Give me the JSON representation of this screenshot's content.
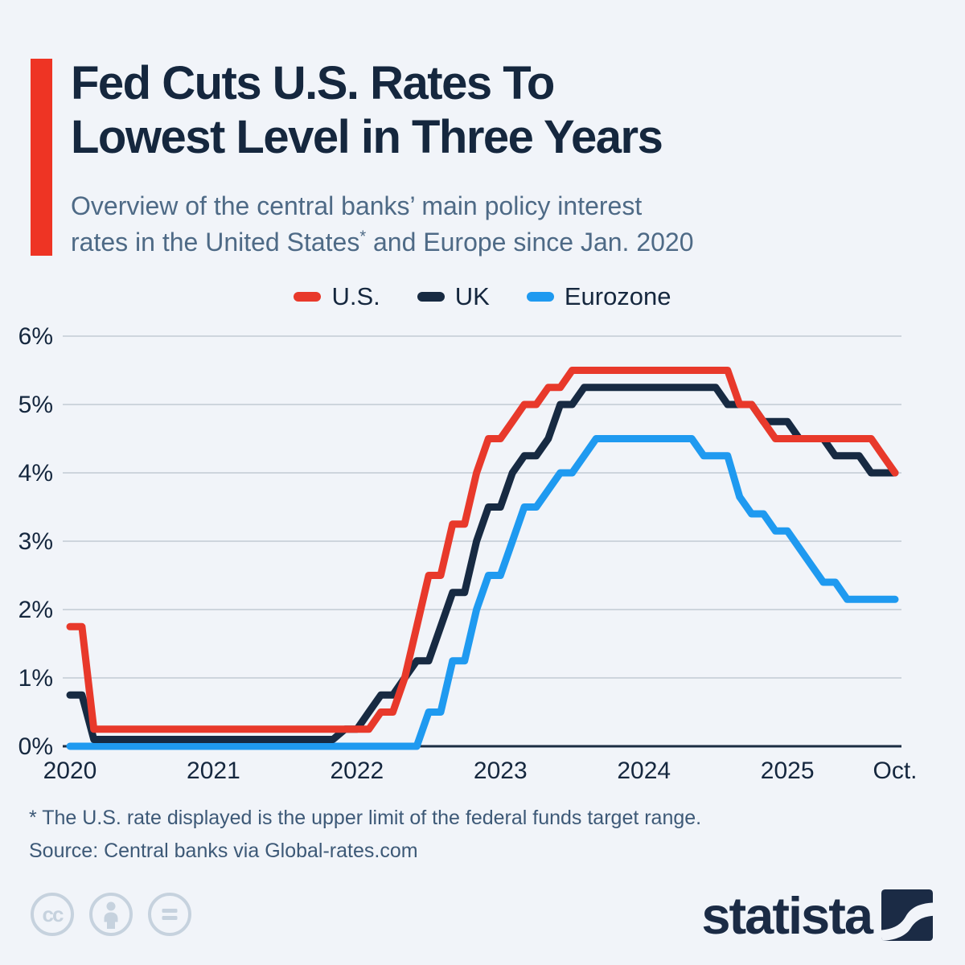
{
  "page": {
    "background": "#f1f4f9",
    "accent_red": "#ee3424",
    "grid_color": "#c9d1d9",
    "axis_color": "#1b2c42",
    "text_dark": "#15273e",
    "text_muted": "#4e6a86"
  },
  "header": {
    "title_line1": "Fed Cuts U.S. Rates To",
    "title_line2": "Lowest Level in Three Years",
    "subtitle_line1": "Overview of the central banks’ main policy interest",
    "subtitle_line2_pre": "rates in the United States",
    "subtitle_asterisk": "*",
    "subtitle_line2_post": " and Europe since Jan. 2020"
  },
  "legend": [
    {
      "label": "U.S.",
      "color": "#e8392b"
    },
    {
      "label": "UK",
      "color": "#172a42"
    },
    {
      "label": "Eurozone",
      "color": "#1f9af0"
    }
  ],
  "chart_data": {
    "type": "line",
    "title": "Central banks' main policy interest rates, Jan 2020 - Oct 2025, monthly",
    "x_unit": "month",
    "x_start": "2020-01",
    "x_end": "2025-10",
    "x_tick_labels": [
      "2020",
      "2021",
      "2022",
      "2023",
      "2024",
      "2025",
      "Oct."
    ],
    "x_tick_month_index": [
      0,
      12,
      24,
      36,
      48,
      60,
      69
    ],
    "y_tick_labels": [
      "0%",
      "1%",
      "2%",
      "3%",
      "4%",
      "5%",
      "6%"
    ],
    "ylim": [
      0,
      6
    ],
    "grid": true,
    "legend_position": "top",
    "series": [
      {
        "name": "U.S.",
        "color": "#e8392b",
        "values": [
          1.75,
          1.75,
          0.25,
          0.25,
          0.25,
          0.25,
          0.25,
          0.25,
          0.25,
          0.25,
          0.25,
          0.25,
          0.25,
          0.25,
          0.25,
          0.25,
          0.25,
          0.25,
          0.25,
          0.25,
          0.25,
          0.25,
          0.25,
          0.25,
          0.25,
          0.25,
          0.5,
          0.5,
          1.0,
          1.75,
          2.5,
          2.5,
          3.25,
          3.25,
          4.0,
          4.5,
          4.5,
          4.75,
          5.0,
          5.0,
          5.25,
          5.25,
          5.5,
          5.5,
          5.5,
          5.5,
          5.5,
          5.5,
          5.5,
          5.5,
          5.5,
          5.5,
          5.5,
          5.5,
          5.5,
          5.5,
          5.0,
          5.0,
          4.75,
          4.5,
          4.5,
          4.5,
          4.5,
          4.5,
          4.5,
          4.5,
          4.5,
          4.5,
          4.25,
          4.0
        ]
      },
      {
        "name": "UK",
        "color": "#172a42",
        "values": [
          0.75,
          0.75,
          0.1,
          0.1,
          0.1,
          0.1,
          0.1,
          0.1,
          0.1,
          0.1,
          0.1,
          0.1,
          0.1,
          0.1,
          0.1,
          0.1,
          0.1,
          0.1,
          0.1,
          0.1,
          0.1,
          0.1,
          0.1,
          0.25,
          0.25,
          0.5,
          0.75,
          0.75,
          1.0,
          1.25,
          1.25,
          1.75,
          2.25,
          2.25,
          3.0,
          3.5,
          3.5,
          4.0,
          4.25,
          4.25,
          4.5,
          5.0,
          5.0,
          5.25,
          5.25,
          5.25,
          5.25,
          5.25,
          5.25,
          5.25,
          5.25,
          5.25,
          5.25,
          5.25,
          5.25,
          5.0,
          5.0,
          5.0,
          4.75,
          4.75,
          4.75,
          4.5,
          4.5,
          4.5,
          4.25,
          4.25,
          4.25,
          4.0,
          4.0,
          4.0
        ]
      },
      {
        "name": "Eurozone",
        "color": "#1f9af0",
        "values": [
          0,
          0,
          0,
          0,
          0,
          0,
          0,
          0,
          0,
          0,
          0,
          0,
          0,
          0,
          0,
          0,
          0,
          0,
          0,
          0,
          0,
          0,
          0,
          0,
          0,
          0,
          0,
          0,
          0,
          0,
          0.5,
          0.5,
          1.25,
          1.25,
          2.0,
          2.5,
          2.5,
          3.0,
          3.5,
          3.5,
          3.75,
          4.0,
          4.0,
          4.25,
          4.5,
          4.5,
          4.5,
          4.5,
          4.5,
          4.5,
          4.5,
          4.5,
          4.5,
          4.25,
          4.25,
          4.25,
          3.65,
          3.4,
          3.4,
          3.15,
          3.15,
          2.9,
          2.65,
          2.4,
          2.4,
          2.15,
          2.15,
          2.15,
          2.15,
          2.15
        ]
      }
    ]
  },
  "footnotes": {
    "asterisk_note": "* The U.S. rate displayed is the upper limit of the federal funds target range.",
    "source": "Source: Central banks via Global-rates.com"
  },
  "footer": {
    "brand": "statista",
    "license_icon_color": "#c6d2de"
  }
}
